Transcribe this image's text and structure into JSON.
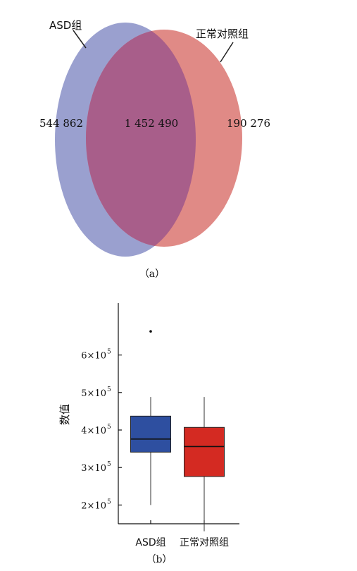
{
  "chart_data": [
    {
      "type": "venn",
      "sets": [
        {
          "name": "ASD组",
          "only": "544 862",
          "color": "#9aa0cf"
        },
        {
          "name": "正常对照组",
          "only": "190 276",
          "color": "#e08a86"
        }
      ],
      "overlap": {
        "value": "1 452 490",
        "color": "#a85e8a"
      },
      "caption": "（a）"
    },
    {
      "type": "box",
      "ylabel": "数值",
      "ylim": [
        150000,
        750000
      ],
      "yticks": [
        {
          "value": 200000,
          "base": "2×10",
          "exp": "5"
        },
        {
          "value": 300000,
          "base": "3×10",
          "exp": "5"
        },
        {
          "value": 400000,
          "base": "4×10",
          "exp": "5"
        },
        {
          "value": 500000,
          "base": "5×10",
          "exp": "5"
        },
        {
          "value": 600000,
          "base": "6×10",
          "exp": "5"
        }
      ],
      "categories": [
        "ASD组",
        "正常对照组"
      ],
      "boxes": [
        {
          "name": "ASD组",
          "min": 200000,
          "q1": 341000,
          "median": 376000,
          "q3": 437000,
          "max": 488000,
          "outliers": [
            663000
          ],
          "color": "#2e4fa0"
        },
        {
          "name": "正常对照组",
          "min": 130000,
          "q1": 276000,
          "median": 356000,
          "q3": 407000,
          "max": 488000,
          "outliers": [],
          "color": "#d42a22"
        }
      ],
      "caption": "（b）"
    }
  ]
}
